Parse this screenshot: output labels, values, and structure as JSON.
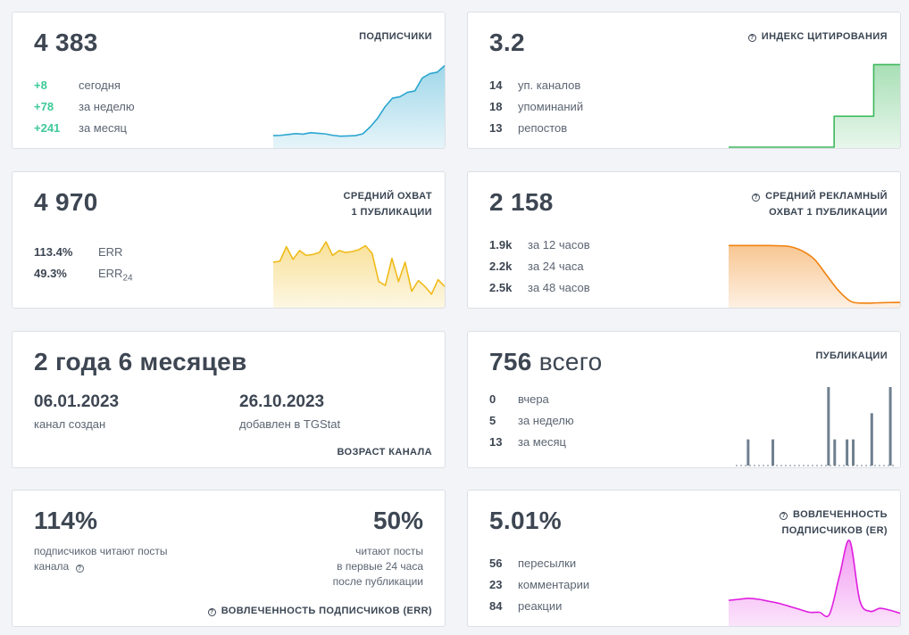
{
  "colors": {
    "green_text": "#3ec998",
    "subscribers_line": "#2ba6cf",
    "citation_line": "#3db85c",
    "reach_line": "#f0bb1a",
    "ad_reach_line": "#f0820e",
    "posts_bar": "#6f7f8f",
    "engagement_line": "#e01de0"
  },
  "subscribers": {
    "value": "4 383",
    "label": "ПОДПИСЧИКИ",
    "rows": [
      {
        "value": "+8",
        "text": "сегодня"
      },
      {
        "value": "+78",
        "text": "за неделю"
      },
      {
        "value": "+241",
        "text": "за месяц"
      }
    ]
  },
  "citation": {
    "value": "3.2",
    "label": "ИНДЕКС ЦИТИРОВАНИЯ",
    "rows": [
      {
        "value": "14",
        "text": "уп. каналов"
      },
      {
        "value": "18",
        "text": "упоминаний"
      },
      {
        "value": "13",
        "text": "репостов"
      }
    ]
  },
  "reach": {
    "value": "4 970",
    "label_line1": "СРЕДНИЙ ОХВАТ",
    "label_line2": "1 ПУБЛИКАЦИИ",
    "rows": [
      {
        "value": "113.4%",
        "text": "ERR"
      },
      {
        "value": "49.3%",
        "text": "ERR",
        "sub": "24"
      }
    ]
  },
  "ad_reach": {
    "value": "2 158",
    "label_line1": "СРЕДНИЙ РЕКЛАМНЫЙ",
    "label_line2": "ОХВАТ 1 ПУБЛИКАЦИИ",
    "rows": [
      {
        "value": "1.9k",
        "text": "за 12 часов"
      },
      {
        "value": "2.2k",
        "text": "за 24 часа"
      },
      {
        "value": "2.5k",
        "text": "за 48 часов"
      }
    ]
  },
  "age": {
    "value": "2 года 6 месяцев",
    "created_date": "06.01.2023",
    "created_label": "канал создан",
    "added_date": "26.10.2023",
    "added_label": "добавлен в TGStat",
    "label": "ВОЗРАСТ КАНАЛА"
  },
  "posts": {
    "value": "756",
    "unit": "всего",
    "label": "ПУБЛИКАЦИИ",
    "rows": [
      {
        "value": "0",
        "text": "вчера"
      },
      {
        "value": "5",
        "text": "за неделю"
      },
      {
        "value": "13",
        "text": "за месяц"
      }
    ]
  },
  "err": {
    "value_left": "114%",
    "text_left_line1": "подписчиков читают посты",
    "text_left_line2": "канала",
    "value_right": "50%",
    "text_right_line1": "читают посты",
    "text_right_line2": "в первые 24 часа",
    "text_right_line3": "после публикации",
    "label": "ВОВЛЕЧЕННОСТЬ ПОДПИСЧИКОВ (ERR)"
  },
  "engagement": {
    "value": "5.01%",
    "label_line1": "ВОВЛЕЧЕННОСТЬ",
    "label_line2": "ПОДПИСЧИКОВ (ER)",
    "rows": [
      {
        "value": "56",
        "text": "пересылки"
      },
      {
        "value": "23",
        "text": "комментарии"
      },
      {
        "value": "84",
        "text": "реакции"
      }
    ]
  },
  "chart_data": [
    {
      "type": "area",
      "name": "subscribers",
      "values": [
        4140,
        4141,
        4144,
        4147,
        4145,
        4150,
        4148,
        4146,
        4141,
        4138,
        4139,
        4140,
        4146,
        4170,
        4200,
        4240,
        4270,
        4275,
        4290,
        4295,
        4340,
        4355,
        4360,
        4383
      ],
      "ylim": [
        4100,
        4400
      ]
    },
    {
      "type": "area",
      "name": "citation",
      "values": [
        0,
        0,
        0,
        0,
        0,
        0,
        0,
        0,
        0,
        0,
        0,
        0,
        0,
        0,
        0,
        0,
        1.2,
        1.2,
        1.2,
        1.2,
        1.2,
        1.2,
        3.2,
        3.2,
        3.2,
        3.2,
        3.2
      ],
      "ylim": [
        0,
        3.7
      ]
    },
    {
      "type": "area",
      "name": "reach",
      "values": [
        5300,
        5350,
        6100,
        5450,
        5900,
        5650,
        5700,
        5800,
        6350,
        5650,
        5900,
        5800,
        5850,
        5950,
        6150,
        5750,
        4300,
        4100,
        5500,
        4300,
        5300,
        3800,
        4350,
        4050,
        3650,
        4400,
        4050
      ],
      "ylim": [
        3000,
        7000
      ]
    },
    {
      "type": "area",
      "name": "ad_reach",
      "values": [
        2480,
        2480,
        2480,
        2480,
        2478,
        2470,
        2430,
        2350,
        2200,
        2050,
        1950,
        1935,
        1937,
        1940,
        1942
      ],
      "ylim": [
        1900,
        2550
      ]
    },
    {
      "type": "bar",
      "name": "posts",
      "values": [
        0,
        0,
        1,
        0,
        0,
        0,
        1,
        0,
        0,
        0,
        0,
        0,
        0,
        0,
        0,
        3,
        1,
        0,
        1,
        1,
        0,
        0,
        2,
        0,
        0,
        3,
        0
      ],
      "ylim": [
        0,
        3
      ]
    },
    {
      "type": "area",
      "name": "engagement",
      "values": [
        4.0,
        4.1,
        4.2,
        4.1,
        3.9,
        3.7,
        3.4,
        3.1,
        2.8,
        2.8,
        2.6,
        6.5,
        10.0,
        4.0,
        2.9,
        3.2,
        3.0,
        2.7
      ],
      "ylim": [
        1.5,
        10.2
      ]
    }
  ]
}
